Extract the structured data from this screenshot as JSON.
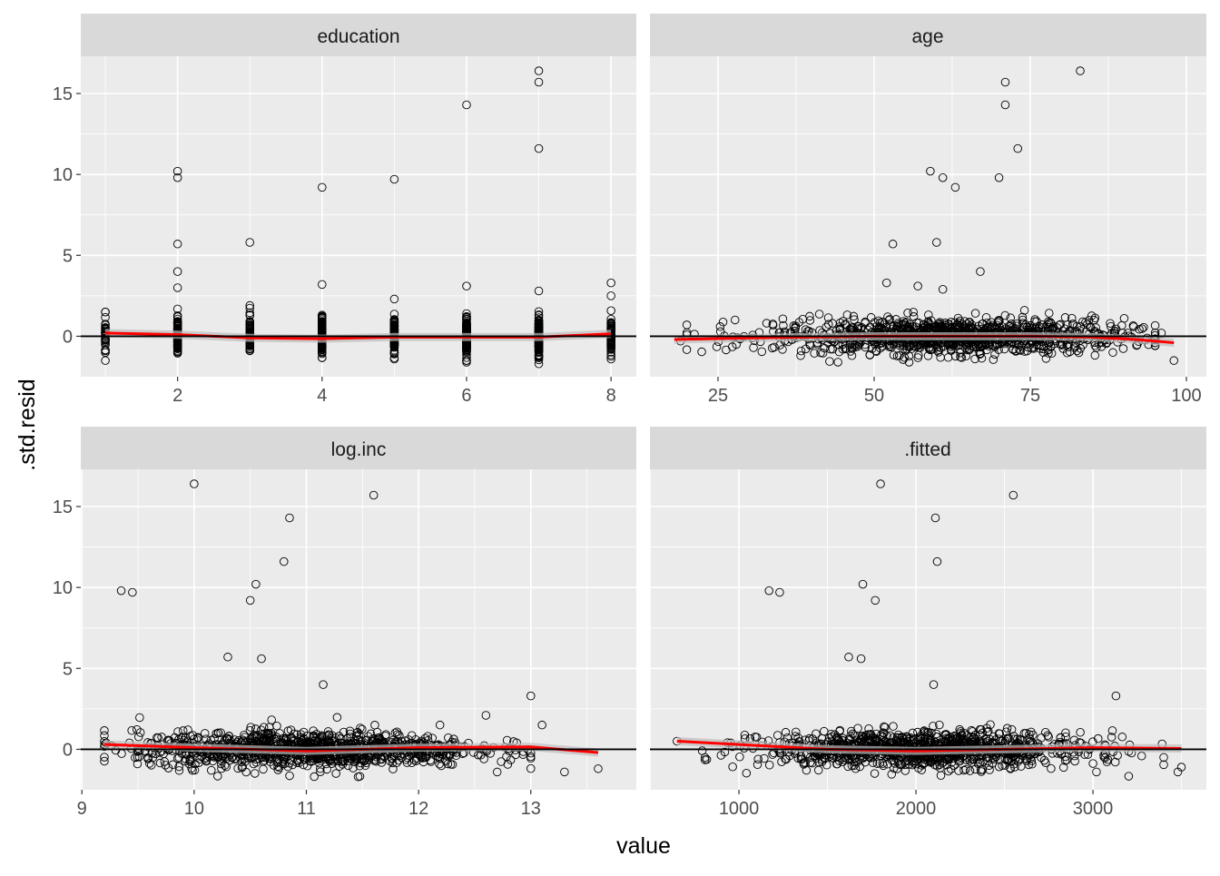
{
  "chart_data": {
    "type": "scatter",
    "xlabel": "value",
    "ylabel": ".std.resid",
    "ylim": [
      -2.5,
      17.3
    ],
    "yticks": [
      0,
      5,
      10,
      15
    ],
    "yminor": [
      2.5,
      7.5,
      12.5
    ],
    "hline": 0,
    "colors": {
      "panel": "#ebebeb",
      "strip": "#d9d9d9",
      "grid": "#ffffff",
      "smooth": "#ff0000",
      "band": "#bdbdbd",
      "point": "#000000"
    },
    "panels": [
      {
        "title": "education",
        "xlim": [
          0.66,
          8.35
        ],
        "xticks": [
          2,
          4,
          6,
          8
        ],
        "xminor": [
          1,
          3,
          5,
          7
        ],
        "outliers": [
          [
            2,
            10.2
          ],
          [
            2,
            9.8
          ],
          [
            2,
            5.7
          ],
          [
            2,
            4.0
          ],
          [
            2,
            3.0
          ],
          [
            3,
            5.8
          ],
          [
            3,
            1.9
          ],
          [
            4,
            9.2
          ],
          [
            4,
            3.2
          ],
          [
            5,
            9.7
          ],
          [
            5,
            2.3
          ],
          [
            6,
            14.3
          ],
          [
            6,
            3.1
          ],
          [
            7,
            16.4
          ],
          [
            7,
            15.7
          ],
          [
            7,
            11.6
          ],
          [
            7,
            2.8
          ],
          [
            8,
            3.3
          ],
          [
            8,
            2.5
          ],
          [
            1,
            1.5
          ],
          [
            1,
            -1.0
          ],
          [
            7,
            -1.7
          ],
          [
            6,
            -1.6
          ]
        ],
        "bulk": {
          "discrete": [
            1,
            2,
            3,
            4,
            5,
            6,
            7,
            8
          ],
          "weights": [
            0.3,
            1,
            0.6,
            1.3,
            0.9,
            1.5,
            1.2,
            0.6
          ],
          "n": 900,
          "ysd": 0.55,
          "yrange": [
            -1.5,
            2.0
          ]
        },
        "smooth": [
          [
            1,
            0.2
          ],
          [
            2,
            0.1
          ],
          [
            3,
            -0.1
          ],
          [
            4,
            -0.15
          ],
          [
            5,
            -0.05
          ],
          [
            6,
            -0.05
          ],
          [
            7,
            -0.05
          ],
          [
            8,
            0.15
          ]
        ]
      },
      {
        "title": "age",
        "xlim": [
          14.1,
          103.2
        ],
        "xticks": [
          25,
          50,
          75,
          100
        ],
        "xminor": [
          37.5,
          62.5,
          87.5
        ],
        "outliers": [
          [
            83,
            16.4
          ],
          [
            71,
            15.7
          ],
          [
            71,
            14.3
          ],
          [
            73,
            11.6
          ],
          [
            70,
            9.8
          ],
          [
            59,
            10.2
          ],
          [
            61,
            9.8
          ],
          [
            63,
            9.2
          ],
          [
            53,
            5.7
          ],
          [
            60,
            5.8
          ],
          [
            67,
            4.0
          ],
          [
            98,
            -1.5
          ],
          [
            52,
            3.3
          ],
          [
            57,
            3.1
          ],
          [
            61,
            2.9
          ],
          [
            19,
            -0.3
          ],
          [
            96,
            0.2
          ]
        ],
        "bulk": {
          "center": 62,
          "spread": 14,
          "range": [
            20,
            95
          ],
          "n": 1100,
          "ysd": 0.55,
          "yrange": [
            -1.6,
            2.4
          ]
        },
        "smooth": [
          [
            18,
            -0.2
          ],
          [
            30,
            -0.1
          ],
          [
            50,
            0.0
          ],
          [
            75,
            0.0
          ],
          [
            85,
            -0.05
          ],
          [
            92,
            -0.2
          ],
          [
            98,
            -0.4
          ]
        ]
      },
      {
        "title": "log.inc",
        "xlim": [
          8.99,
          13.94
        ],
        "xticks": [
          9,
          10,
          11,
          12,
          13
        ],
        "xminor": [
          9.5,
          10.5,
          11.5,
          12.5,
          13.5
        ],
        "outliers": [
          [
            10,
            16.4
          ],
          [
            11.6,
            15.7
          ],
          [
            10.85,
            14.3
          ],
          [
            10.8,
            11.6
          ],
          [
            9.35,
            9.8
          ],
          [
            9.45,
            9.7
          ],
          [
            10.55,
            10.2
          ],
          [
            10.5,
            9.2
          ],
          [
            10.3,
            5.7
          ],
          [
            10.6,
            5.6
          ],
          [
            11.15,
            4.0
          ],
          [
            13.0,
            3.3
          ],
          [
            13.3,
            -1.4
          ],
          [
            13.6,
            -1.2
          ],
          [
            12.6,
            2.1
          ],
          [
            13.1,
            1.5
          ]
        ],
        "bulk": {
          "center": 11.0,
          "spread": 0.75,
          "range": [
            9.2,
            13.0
          ],
          "n": 1100,
          "ysd": 0.55,
          "yrange": [
            -1.7,
            2.5
          ]
        },
        "smooth": [
          [
            9.2,
            0.3
          ],
          [
            10,
            0.1
          ],
          [
            11,
            -0.1
          ],
          [
            12,
            0.1
          ],
          [
            13,
            0.15
          ],
          [
            13.6,
            -0.2
          ]
        ]
      },
      {
        "title": ".fitted",
        "xlim": [
          497,
          3641
        ],
        "xticks": [
          1000,
          2000,
          3000
        ],
        "xminor": [
          500,
          1500,
          2500,
          3500
        ],
        "outliers": [
          [
            1800,
            16.4
          ],
          [
            2550,
            15.7
          ],
          [
            2110,
            14.3
          ],
          [
            2120,
            11.6
          ],
          [
            1170,
            9.8
          ],
          [
            1230,
            9.7
          ],
          [
            1700,
            10.2
          ],
          [
            1770,
            9.2
          ],
          [
            1620,
            5.7
          ],
          [
            1690,
            5.6
          ],
          [
            2100,
            4.0
          ],
          [
            3130,
            3.3
          ],
          [
            3480,
            -1.4
          ],
          [
            3500,
            -1.1
          ],
          [
            3020,
            -1.4
          ],
          [
            650,
            0.5
          ]
        ],
        "bulk": {
          "center": 2050,
          "spread": 450,
          "range": [
            750,
            3400
          ],
          "n": 1100,
          "ysd": 0.55,
          "yrange": [
            -1.7,
            2.5
          ]
        },
        "smooth": [
          [
            650,
            0.5
          ],
          [
            1000,
            0.3
          ],
          [
            1500,
            0.0
          ],
          [
            2000,
            -0.1
          ],
          [
            2500,
            0.0
          ],
          [
            3000,
            0.1
          ],
          [
            3500,
            0.05
          ]
        ]
      }
    ]
  }
}
